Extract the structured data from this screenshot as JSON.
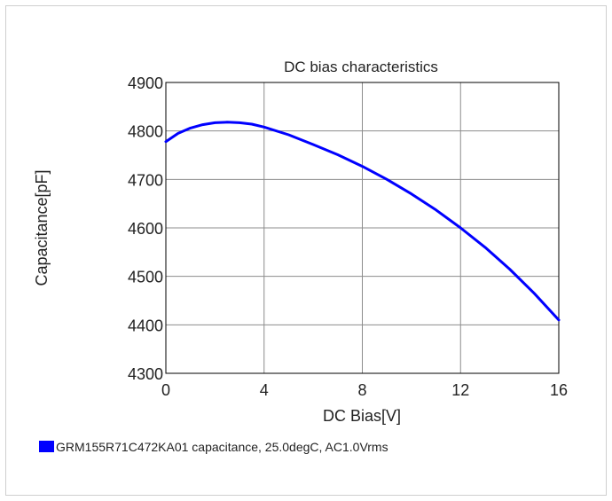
{
  "chart_data": {
    "type": "line",
    "title": "DC bias characteristics",
    "xlabel": "DC Bias[V]",
    "ylabel": "Capacitance[pF]",
    "xlim": [
      0,
      16
    ],
    "ylim": [
      4300,
      4900
    ],
    "xticks": [
      "0",
      "4",
      "8",
      "12",
      "16"
    ],
    "yticks": [
      "4300",
      "4400",
      "4500",
      "4600",
      "4700",
      "4800",
      "4900"
    ],
    "grid": true,
    "legend_position": "bottom-left",
    "series": [
      {
        "name": "GRM155R71C472KA01 capacitance, 25.0degC, AC1.0Vrms",
        "color": "#0000ff",
        "x": [
          0,
          0.5,
          1,
          1.5,
          2,
          2.5,
          3,
          3.5,
          4,
          5,
          6,
          7,
          8,
          9,
          10,
          11,
          12,
          13,
          14,
          15,
          16
        ],
        "y": [
          4778,
          4795,
          4806,
          4813,
          4817,
          4818,
          4817,
          4814,
          4808,
          4792,
          4772,
          4751,
          4727,
          4700,
          4670,
          4637,
          4600,
          4560,
          4515,
          4465,
          4410
        ]
      }
    ]
  }
}
